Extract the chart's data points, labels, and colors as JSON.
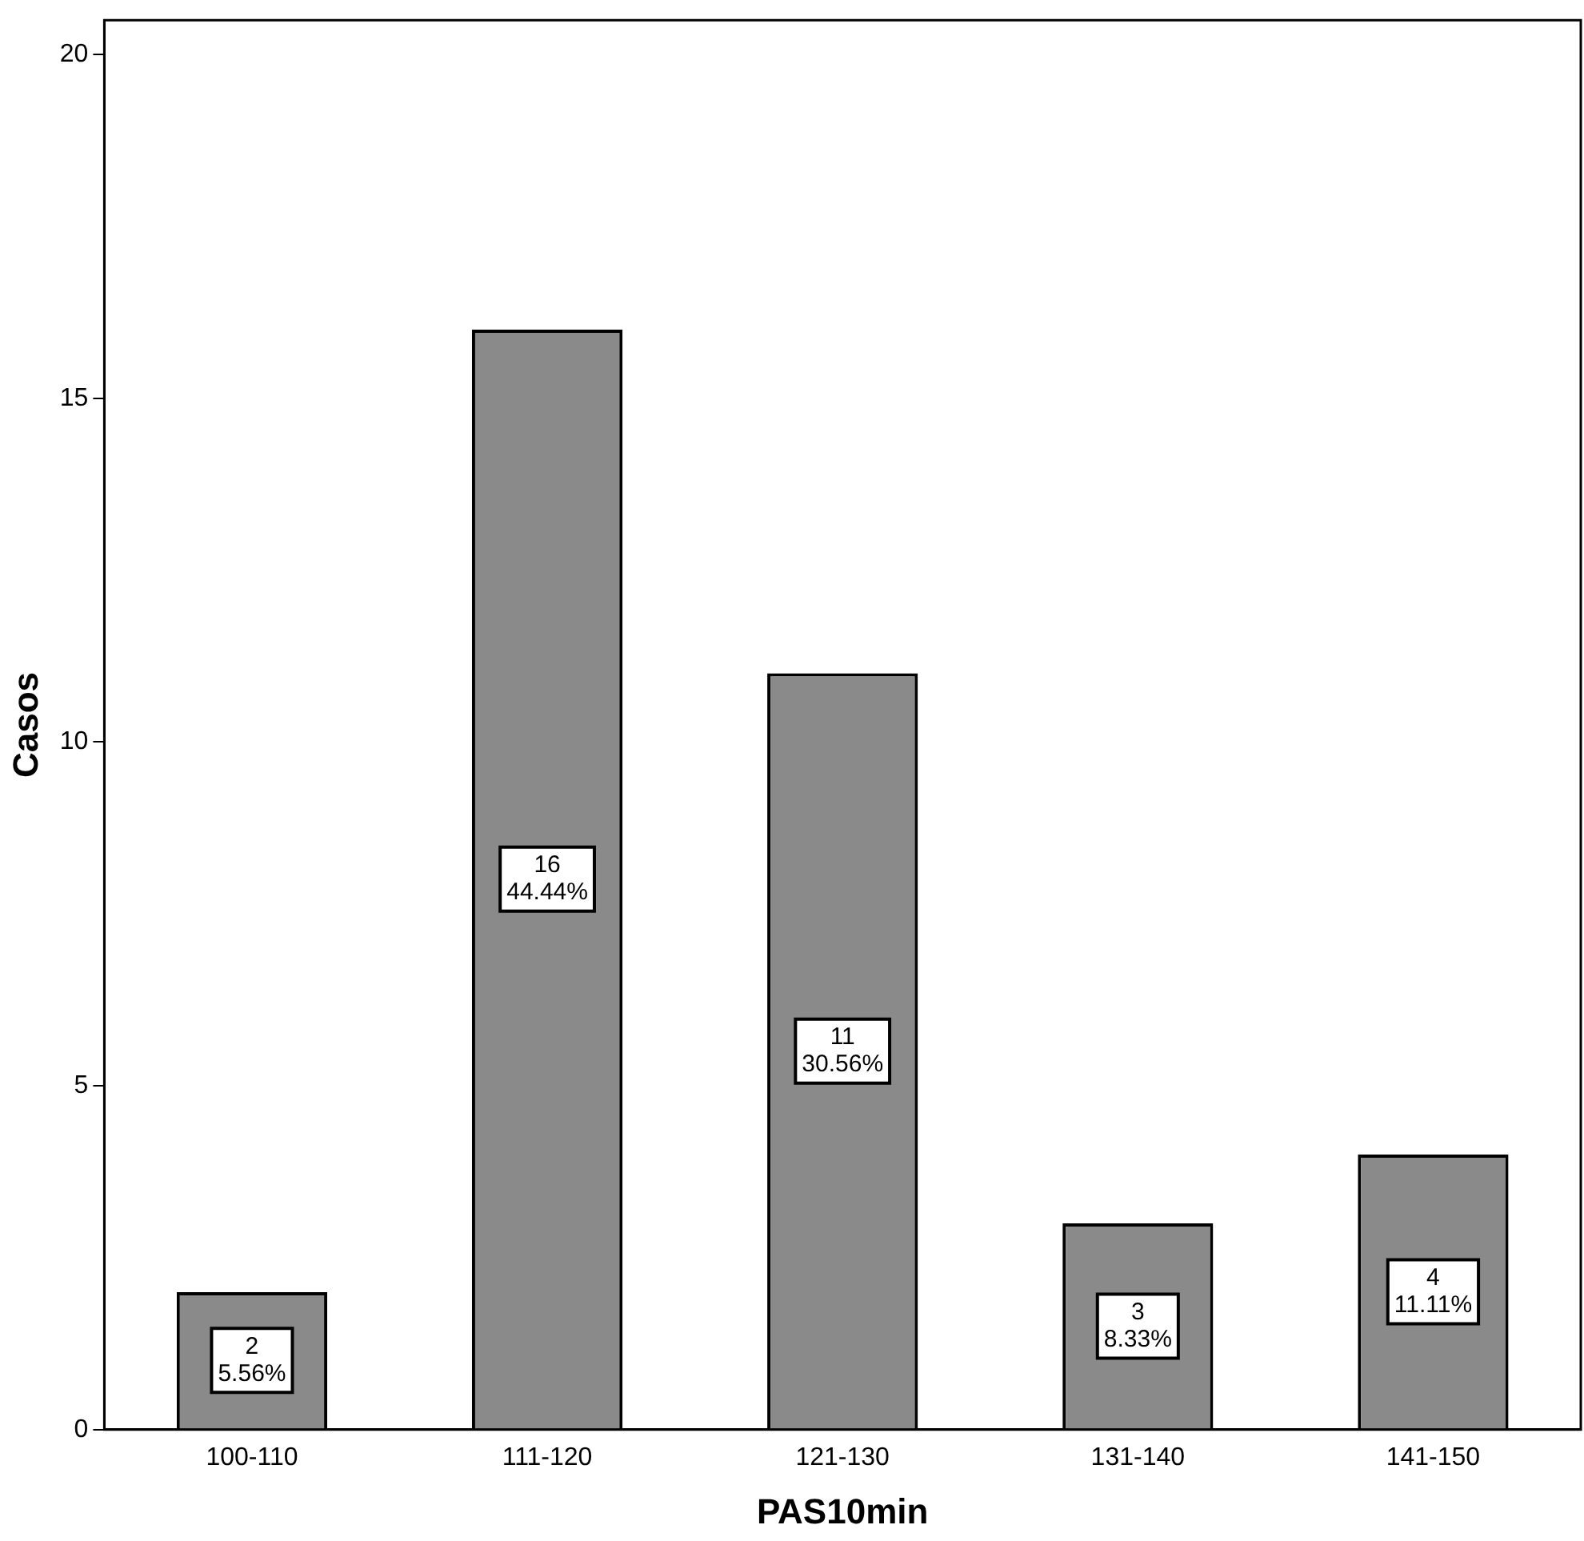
{
  "chart_data": {
    "type": "bar",
    "xlabel": "PAS10min",
    "ylabel": "Casos",
    "categories": [
      "100-110",
      "111-120",
      "121-130",
      "131-140",
      "141-150"
    ],
    "values": [
      2,
      16,
      11,
      3,
      4
    ],
    "value_labels": [
      "2\n5.56%",
      "16\n44.44%",
      "11\n30.56%",
      "3\n8.33%",
      "4\n11.11%"
    ],
    "color": "#8a8a8a",
    "ylim": [
      0,
      20.5
    ],
    "yticks": [
      0,
      5,
      10,
      15,
      20
    ],
    "grid": false,
    "legend": false
  }
}
